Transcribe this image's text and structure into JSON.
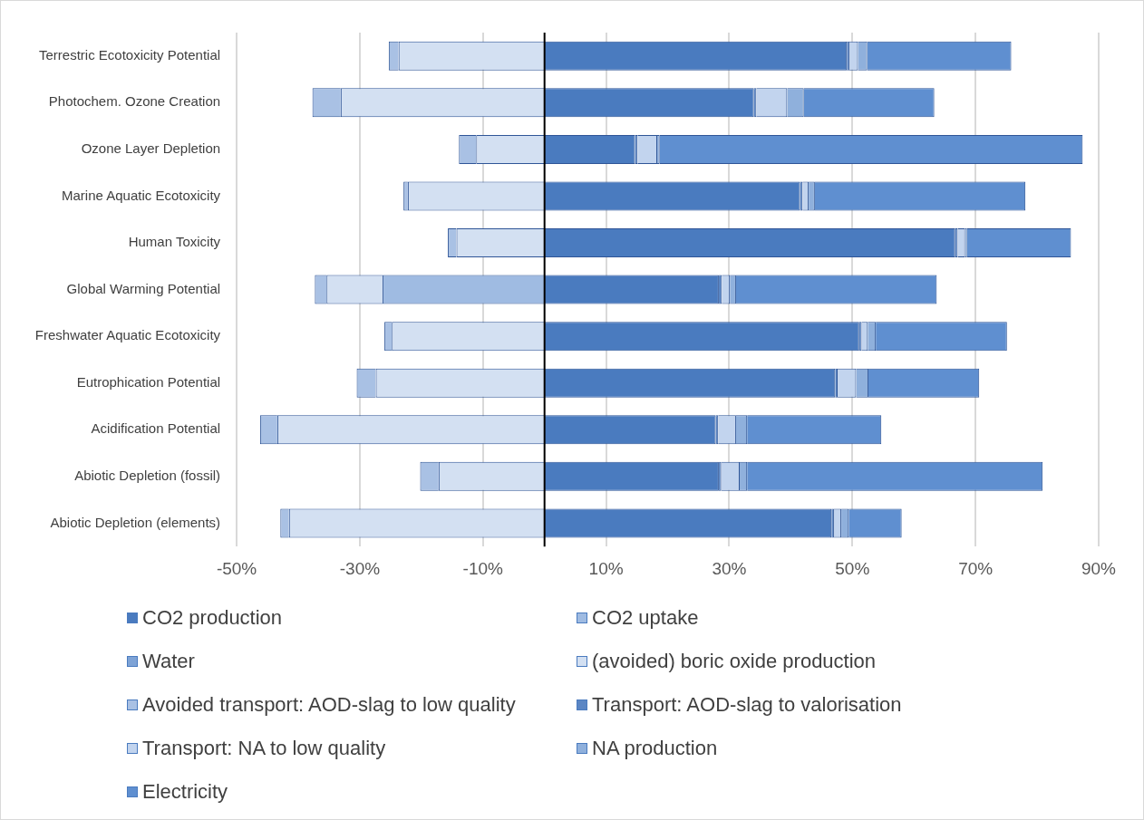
{
  "chart_data": {
    "type": "bar",
    "orientation": "horizontal",
    "stacked": true,
    "categories": [
      "Terrestric Ecotoxicity Potential",
      "Photochem. Ozone Creation",
      "Ozone Layer Depletion",
      "Marine Aquatic Ecotoxicity",
      "Human Toxicity",
      "Global Warming Potential",
      "Freshwater Aquatic Ecotoxicity",
      "Eutrophication Potential",
      "Acidification Potential",
      "Abiotic Depletion (fossil)",
      "Abiotic Depletion (elements)"
    ],
    "series": [
      {
        "name": "CO2 production",
        "color": "#4a7bbf",
        "values": [
          49.1,
          34.0,
          14.7,
          41.5,
          66.7,
          28.3,
          51.1,
          47.2,
          27.8,
          28.3,
          46.6
        ]
      },
      {
        "name": "CO2 uptake",
        "color": "#9fbbe2",
        "values": [
          null,
          null,
          null,
          null,
          null,
          -26.3,
          null,
          null,
          null,
          null,
          null
        ]
      },
      {
        "name": "Water",
        "color": "#7ea3d6",
        "values": [
          null,
          null,
          null,
          null,
          null,
          null,
          null,
          null,
          null,
          null,
          null
        ]
      },
      {
        "name": "(avoided) boric oxide production",
        "color": "#d3e0f2",
        "values": [
          -23.7,
          -33.1,
          -11.1,
          -22.2,
          -14.3,
          -9.1,
          -24.8,
          -27.4,
          -43.4,
          -17.2,
          -41.5
        ]
      },
      {
        "name": "Avoided transport: AOD-slag to low quality",
        "color": "#a9c1e4",
        "values": [
          -1.6,
          -4.6,
          -2.8,
          -0.7,
          -1.4,
          -1.9,
          -1.2,
          -3.1,
          -2.8,
          -3.0,
          -1.4
        ]
      },
      {
        "name": "Transport: AOD-slag to valorisation",
        "color": "#5b86c4",
        "values": [
          0.4,
          0.4,
          0.4,
          0.4,
          0.4,
          0.5,
          0.4,
          0.4,
          0.4,
          0.4,
          0.4
        ]
      },
      {
        "name": "Transport: NA to low quality",
        "color": "#c2d4ee",
        "values": [
          1.4,
          5.0,
          3.2,
          1.0,
          1.2,
          1.3,
          1.0,
          3.0,
          2.9,
          3.0,
          1.2
        ]
      },
      {
        "name": "NA production",
        "color": "#8fb0dc",
        "values": [
          1.5,
          2.7,
          0.4,
          1.0,
          0.3,
          1.0,
          1.3,
          2.0,
          1.8,
          1.2,
          1.2
        ]
      },
      {
        "name": "Electricity",
        "color": "#5f8fd0",
        "values": [
          23.4,
          21.2,
          68.7,
          34.2,
          16.9,
          32.6,
          21.3,
          18.0,
          21.8,
          48.0,
          8.6
        ]
      }
    ],
    "xlim": [
      -50,
      90
    ],
    "xticks": [
      {
        "value": -50,
        "label": "-50%"
      },
      {
        "value": -30,
        "label": "-30%"
      },
      {
        "value": -10,
        "label": "-10%"
      },
      {
        "value": 10,
        "label": "10%"
      },
      {
        "value": 30,
        "label": "30%"
      },
      {
        "value": 50,
        "label": "50%"
      },
      {
        "value": 70,
        "label": "70%"
      },
      {
        "value": 90,
        "label": "90%"
      }
    ],
    "grid": "x",
    "legend": "bottom"
  }
}
